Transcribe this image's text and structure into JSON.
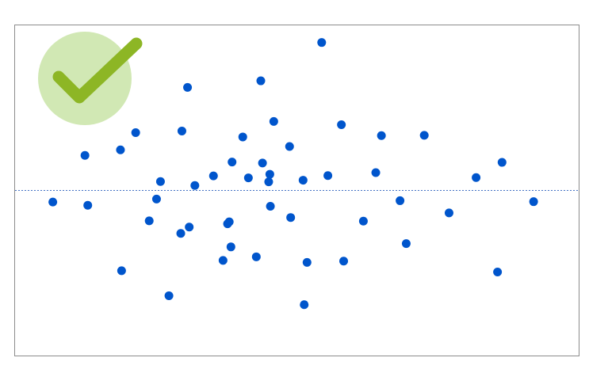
{
  "chart_data": {
    "type": "scatter",
    "title": "",
    "xlabel": "",
    "ylabel": "",
    "grid": false,
    "xlim": [
      0,
      100
    ],
    "ylim": [
      -50,
      50
    ],
    "reference_line": {
      "y": 0,
      "style": "dotted",
      "color": "#4472c4"
    },
    "series": [
      {
        "color": "#0055cc",
        "points": [
          {
            "x": 6.7,
            "y": -3.5
          },
          {
            "x": 12.4,
            "y": 10.6
          },
          {
            "x": 12.9,
            "y": -4.5
          },
          {
            "x": 18.7,
            "y": 12.3
          },
          {
            "x": 18.9,
            "y": -24.3
          },
          {
            "x": 21.4,
            "y": 17.5
          },
          {
            "x": 23.8,
            "y": -9.2
          },
          {
            "x": 25.1,
            "y": -2.6
          },
          {
            "x": 25.8,
            "y": 2.7
          },
          {
            "x": 27.3,
            "y": -31.9
          },
          {
            "x": 29.4,
            "y": -13.0
          },
          {
            "x": 29.6,
            "y": 18.0
          },
          {
            "x": 30.6,
            "y": 31.2
          },
          {
            "x": 30.9,
            "y": -11.1
          },
          {
            "x": 31.9,
            "y": 1.5
          },
          {
            "x": 35.2,
            "y": 4.4
          },
          {
            "x": 36.9,
            "y": -21.2
          },
          {
            "x": 37.7,
            "y": -10.1
          },
          {
            "x": 38.0,
            "y": -9.5
          },
          {
            "x": 38.3,
            "y": -17.1
          },
          {
            "x": 38.5,
            "y": 8.6
          },
          {
            "x": 40.4,
            "y": 16.2
          },
          {
            "x": 41.4,
            "y": 3.8
          },
          {
            "x": 42.8,
            "y": -20.1
          },
          {
            "x": 43.6,
            "y": 33.2
          },
          {
            "x": 43.9,
            "y": 8.3
          },
          {
            "x": 45.0,
            "y": 2.6
          },
          {
            "x": 45.2,
            "y": 4.9
          },
          {
            "x": 45.3,
            "y": -4.8
          },
          {
            "x": 45.9,
            "y": 20.9
          },
          {
            "x": 48.7,
            "y": 13.3
          },
          {
            "x": 48.9,
            "y": -8.2
          },
          {
            "x": 51.1,
            "y": 3.1
          },
          {
            "x": 51.3,
            "y": -34.6
          },
          {
            "x": 51.8,
            "y": -21.8
          },
          {
            "x": 54.4,
            "y": 44.8
          },
          {
            "x": 55.5,
            "y": 4.5
          },
          {
            "x": 57.9,
            "y": 19.9
          },
          {
            "x": 58.3,
            "y": -21.4
          },
          {
            "x": 61.8,
            "y": -9.3
          },
          {
            "x": 64.0,
            "y": 5.4
          },
          {
            "x": 65.0,
            "y": 16.6
          },
          {
            "x": 68.3,
            "y": -3.1
          },
          {
            "x": 69.4,
            "y": -16.1
          },
          {
            "x": 72.6,
            "y": 16.7
          },
          {
            "x": 77.0,
            "y": -6.8
          },
          {
            "x": 81.8,
            "y": 3.9
          },
          {
            "x": 85.6,
            "y": -24.7
          },
          {
            "x": 86.4,
            "y": 8.5
          },
          {
            "x": 92.0,
            "y": -3.4
          }
        ]
      }
    ]
  },
  "badge": {
    "icon": "checkmark-icon",
    "circle_color": "#d1e8b4",
    "check_color": "#8db625"
  }
}
